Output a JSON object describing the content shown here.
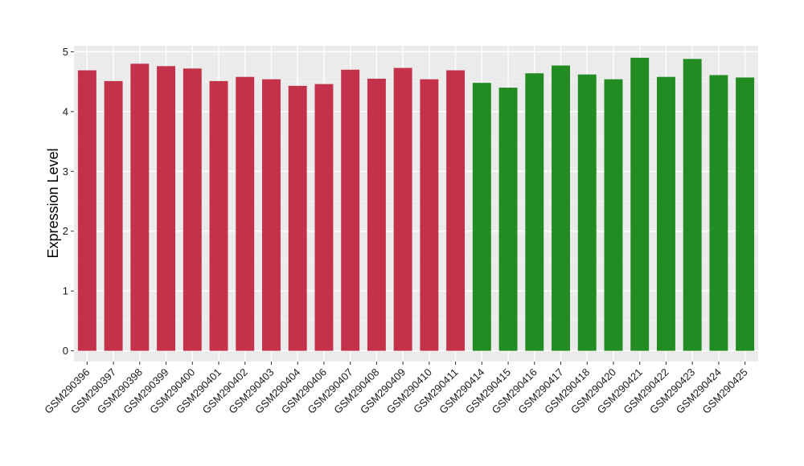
{
  "chart_data": {
    "type": "bar",
    "ylabel": "Expression Level",
    "xlabel": "",
    "ylim": [
      -0.18,
      5.1
    ],
    "yticks": [
      0,
      1,
      2,
      3,
      4,
      5
    ],
    "grid": true,
    "background": "#ebebeb",
    "group_colors": [
      "#c3314a",
      "#228b22"
    ],
    "categories": [
      "GSM290396",
      "GSM290397",
      "GSM290398",
      "GSM290399",
      "GSM290400",
      "GSM290401",
      "GSM290402",
      "GSM290403",
      "GSM290404",
      "GSM290406",
      "GSM290407",
      "GSM290408",
      "GSM290409",
      "GSM290410",
      "GSM290411",
      "GSM290414",
      "GSM290415",
      "GSM290416",
      "GSM290417",
      "GSM290418",
      "GSM290420",
      "GSM290421",
      "GSM290422",
      "GSM290423",
      "GSM290424",
      "GSM290425"
    ],
    "values": [
      4.69,
      4.51,
      4.8,
      4.76,
      4.72,
      4.51,
      4.58,
      4.54,
      4.43,
      4.46,
      4.7,
      4.55,
      4.73,
      4.54,
      4.69,
      4.48,
      4.4,
      4.64,
      4.77,
      4.62,
      4.54,
      4.9,
      4.58,
      4.88,
      4.61,
      4.57
    ],
    "group": [
      0,
      0,
      0,
      0,
      0,
      0,
      0,
      0,
      0,
      0,
      0,
      0,
      0,
      0,
      0,
      1,
      1,
      1,
      1,
      1,
      1,
      1,
      1,
      1,
      1,
      1
    ]
  }
}
